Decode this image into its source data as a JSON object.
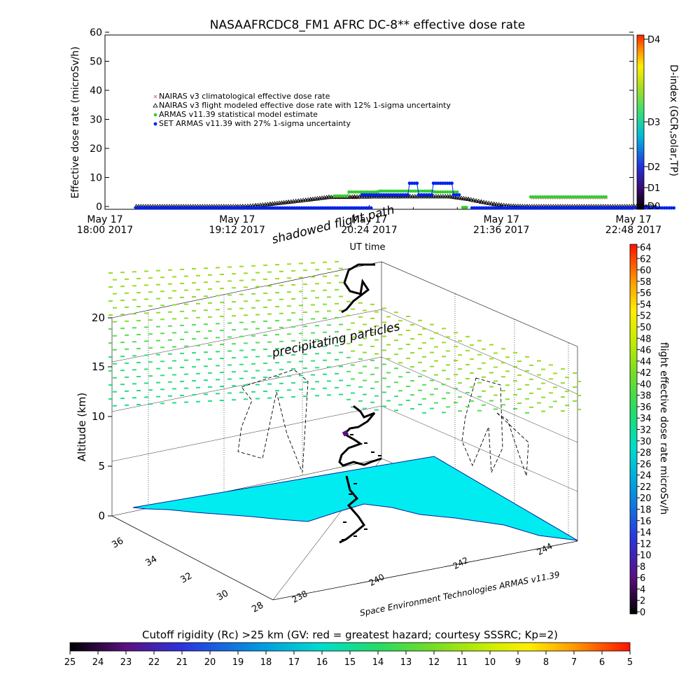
{
  "chart_data": [
    {
      "type": "line",
      "title": "NASAAFRCDC8_FM1 AFRC DC-8** effective dose rate",
      "xlabel": "UT time",
      "ylabel": "Effective dose rate (microSv/h)",
      "ylim": [
        0,
        60
      ],
      "y_ticks": [
        "0",
        "10",
        "20",
        "30",
        "40",
        "50",
        "60"
      ],
      "x_range_min": [
        0,
        288
      ],
      "x_ticks": [
        {
          "min": 0,
          "line1": "May 17",
          "line2": "18:00 2017"
        },
        {
          "min": 72,
          "line1": "May 17",
          "line2": "19:12 2017"
        },
        {
          "min": 144,
          "line1": "May 17",
          "line2": "20:24 2017"
        },
        {
          "min": 216,
          "line1": "May 17",
          "line2": "21:36 2017"
        },
        {
          "min": 288,
          "line1": "May 17",
          "line2": "22:48 2017"
        }
      ],
      "legend": [
        {
          "label": "NAIRAS v3 climatological effective dose rate",
          "color": "#e07070",
          "marker": "x"
        },
        {
          "label": "NAIRAS v3 flight modeled effective dose rate with 12% 1-sigma uncertainty",
          "color": "#000000",
          "marker": "triangle"
        },
        {
          "label": "ARMAS v11.39 statistical model estimate",
          "color": "#33cc33",
          "marker": "star"
        },
        {
          "label": "SET ARMAS v11.39 with 27% 1-sigma uncertainty",
          "color": "#0022ee",
          "marker": "dot"
        }
      ],
      "series": [
        {
          "name": "NAIRAS v3 climatological effective dose rate",
          "color": "#e07070",
          "segments": [
            [
              [
                125,
                3.0
              ],
              [
                138,
                3.0
              ]
            ],
            [
              [
                233,
                3.0
              ],
              [
                273,
                3.0
              ]
            ]
          ]
        },
        {
          "name": "NAIRAS v3 flight modeled effective dose rate with 12% 1-sigma uncertainty",
          "color": "#000000",
          "segments": [
            [
              [
                17,
                0
              ],
              [
                75,
                0
              ],
              [
                82,
                0.3
              ],
              [
                90,
                0.8
              ],
              [
                100,
                1.5
              ],
              [
                112,
                2.4
              ],
              [
                122,
                3.2
              ],
              [
                136,
                3.3
              ],
              [
                160,
                3.4
              ],
              [
                188,
                3.4
              ],
              [
                198,
                2.5
              ],
              [
                205,
                1.6
              ],
              [
                212,
                0.8
              ],
              [
                220,
                0.2
              ],
              [
                230,
                0
              ],
              [
                300,
                0
              ]
            ]
          ]
        },
        {
          "name": "ARMAS v11.39 statistical model estimate",
          "color": "#33cc33",
          "segments": [
            [
              [
                125,
                3.6
              ],
              [
                132,
                3.6
              ],
              [
                133,
                5.0
              ],
              [
                148,
                5.0
              ],
              [
                150,
                5.3
              ],
              [
                178,
                5.3
              ],
              [
                180,
                5.0
              ],
              [
                192,
                5.0
              ]
            ],
            [
              [
                195,
                -0.3
              ],
              [
                197,
                -0.3
              ]
            ],
            [
              [
                232,
                3.3
              ],
              [
                273,
                3.3
              ]
            ]
          ]
        },
        {
          "name": "SET ARMAS v11.39 with 27% 1-sigma uncertainty",
          "color": "#0022ee",
          "segments": [
            [
              [
                17,
                -0.5
              ],
              [
                145,
                -0.5
              ]
            ],
            [
              [
                140,
                4.0
              ],
              [
                165,
                4.0
              ],
              [
                166,
                8.0
              ],
              [
                170,
                8.0
              ],
              [
                171,
                4.0
              ],
              [
                178,
                4.0
              ],
              [
                179,
                8.0
              ],
              [
                189,
                8.0
              ],
              [
                190,
                4.0
              ],
              [
                193,
                4.0
              ]
            ],
            [
              [
                200,
                -0.5
              ],
              [
                310,
                -0.5
              ]
            ]
          ]
        }
      ],
      "colorbar": {
        "label": "D-index (GCR,solar,TP)",
        "ticks": [
          "D0",
          "D1",
          "D2",
          "D3",
          "D4"
        ]
      }
    },
    {
      "type": "scatter",
      "xlabel": "",
      "ylabel": "Altitude (km)",
      "zlim": [
        0,
        20
      ],
      "z_ticks": [
        "0",
        "5",
        "10",
        "15",
        "20"
      ],
      "lat_ticks": [
        "36",
        "34",
        "32",
        "30",
        "28"
      ],
      "lon_ticks": [
        "238",
        "240",
        "242",
        "244"
      ],
      "annotations": [
        "shadowed flight path",
        "precipitating particles",
        "Space Environment Technologies ARMAS v11.39"
      ],
      "colorbar_right": {
        "label": "flight effective dose rate microSv/h",
        "ticks": [
          "0",
          "2",
          "4",
          "6",
          "8",
          "10",
          "12",
          "14",
          "16",
          "18",
          "20",
          "22",
          "24",
          "26",
          "28",
          "30",
          "32",
          "34",
          "36",
          "38",
          "40",
          "42",
          "44",
          "46",
          "48",
          "50",
          "52",
          "54",
          "56",
          "58",
          "60",
          "62",
          "64"
        ]
      },
      "colorbar_bottom": {
        "label": "Cutoff rigidity (Rc) >25 km (GV: red = greatest hazard; courtesy SSSRC; Kp=2)",
        "ticks": [
          "25",
          "24",
          "23",
          "22",
          "21",
          "20",
          "19",
          "18",
          "17",
          "16",
          "15",
          "14",
          "13",
          "12",
          "11",
          "10",
          "9",
          "8",
          "7",
          "6",
          "5"
        ]
      },
      "flight_path": [
        {
          "alt_km": 0.5,
          "dose": 2
        },
        {
          "alt_km": 2,
          "dose": 2
        },
        {
          "alt_km": 4,
          "dose": 3
        },
        {
          "alt_km": 5,
          "dose": 4
        },
        {
          "alt_km": 7,
          "dose": 5
        },
        {
          "alt_km": 8,
          "dose": 8
        },
        {
          "alt_km": 10,
          "dose": 6
        },
        {
          "alt_km": 11,
          "dose": 4
        }
      ]
    }
  ]
}
